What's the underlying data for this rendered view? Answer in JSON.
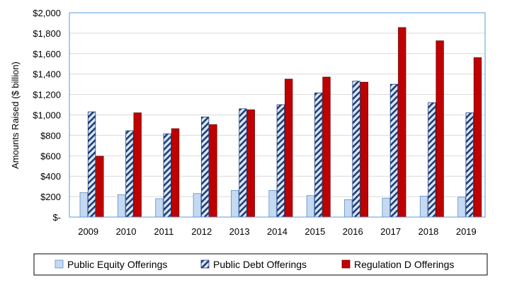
{
  "chart_data": {
    "type": "bar",
    "title": "",
    "xlabel": "",
    "ylabel": "Amounts Raised ($ billion)",
    "ylim": [
      0,
      2000
    ],
    "y_ticks": [
      0,
      200,
      400,
      600,
      800,
      1000,
      1200,
      1400,
      1600,
      1800,
      2000
    ],
    "y_tick_labels": [
      "$-",
      "$200",
      "$400",
      "$600",
      "$800",
      "$1,000",
      "$1,200",
      "$1,400",
      "$1,600",
      "$1,800",
      "$2,000"
    ],
    "grid": true,
    "legend_position": "bottom",
    "categories": [
      "2009",
      "2010",
      "2011",
      "2012",
      "2013",
      "2014",
      "2015",
      "2016",
      "2017",
      "2018",
      "2019"
    ],
    "series": [
      {
        "name": "Public Equity Offerings",
        "style": "light",
        "values": [
          240,
          220,
          180,
          230,
          260,
          260,
          210,
          170,
          185,
          205,
          195
        ]
      },
      {
        "name": "Public Debt Offerings",
        "style": "hatched",
        "values": [
          1030,
          845,
          815,
          980,
          1060,
          1100,
          1215,
          1330,
          1300,
          1120,
          1020
        ]
      },
      {
        "name": "Regulation D Offerings",
        "style": "solid",
        "values": [
          595,
          1020,
          865,
          905,
          1050,
          1350,
          1370,
          1320,
          1855,
          1725,
          1560
        ]
      }
    ],
    "colors": {
      "equity_fill": "#c5d9f1",
      "equity_stroke": "#5b8fc9",
      "debt_fill": "#dbe7f5",
      "debt_hatch": "#1f3d7a",
      "debt_stroke": "#1f3d7a",
      "regd_fill": "#c00000",
      "regd_stroke": "#6b0000",
      "plot_border": "#5b9bd5",
      "gridline": "#d9d9d9",
      "text": "#000000"
    }
  }
}
